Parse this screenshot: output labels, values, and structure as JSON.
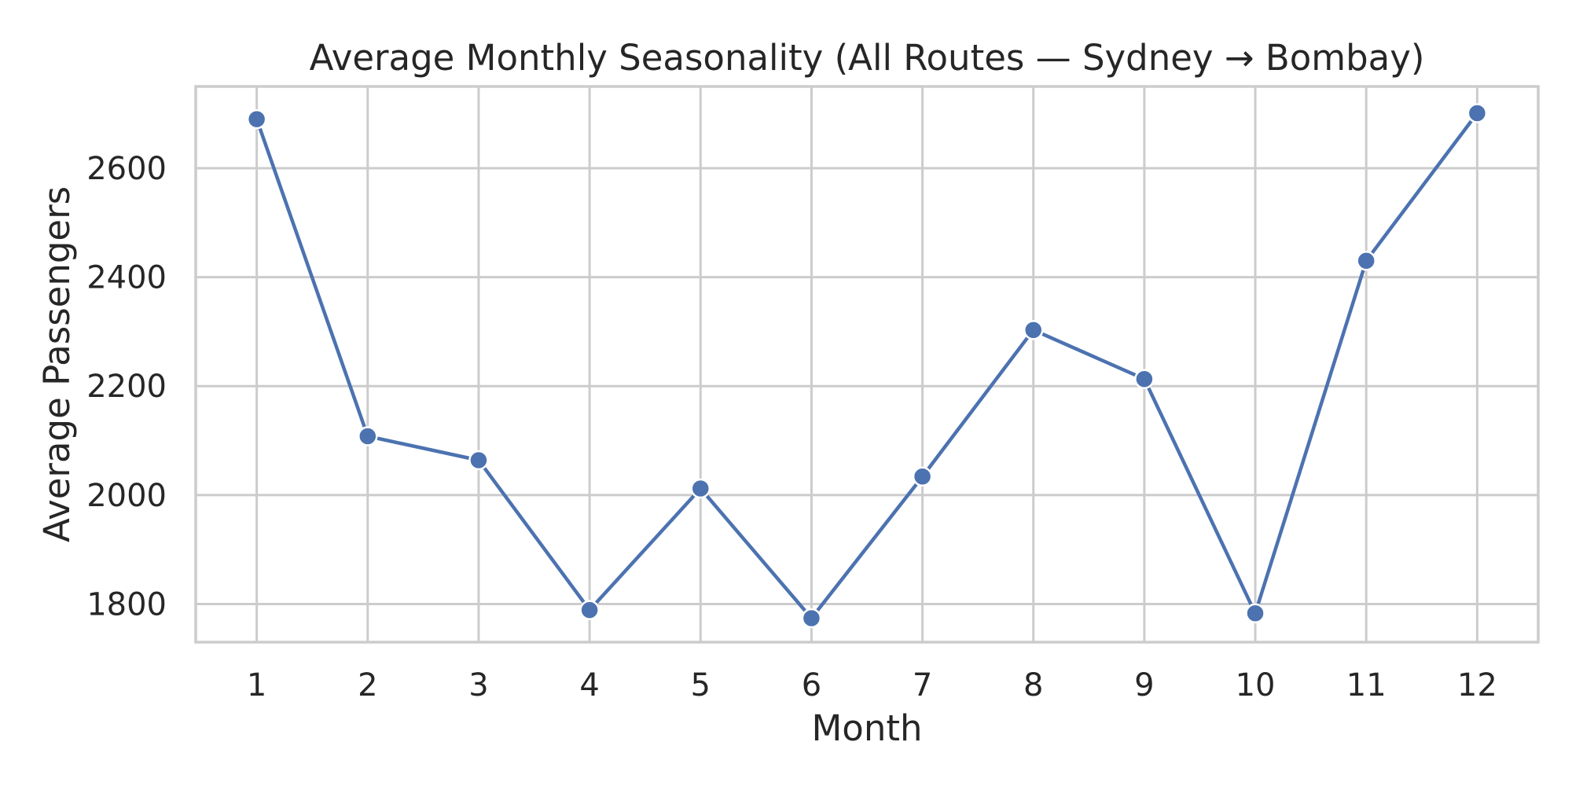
{
  "chart_data": {
    "type": "line",
    "title": "Average Monthly Seasonality (All Routes — Sydney → Bombay)",
    "xlabel": "Month",
    "ylabel": "Average Passengers",
    "x": [
      1,
      2,
      3,
      4,
      5,
      6,
      7,
      8,
      9,
      10,
      11,
      12
    ],
    "xticks": [
      1,
      2,
      3,
      4,
      5,
      6,
      7,
      8,
      9,
      10,
      11,
      12
    ],
    "xlim": [
      0.45,
      12.55
    ],
    "ylim": [
      1730,
      2750
    ],
    "yticks": [
      1800,
      2000,
      2200,
      2400,
      2600
    ],
    "grid": true,
    "series": [
      {
        "values": [
          2690,
          2108,
          2064,
          1789,
          2012,
          1774,
          2034,
          2303,
          2213,
          1783,
          2430,
          2701
        ],
        "color": "#4c72b0",
        "marker": "circle"
      }
    ]
  }
}
